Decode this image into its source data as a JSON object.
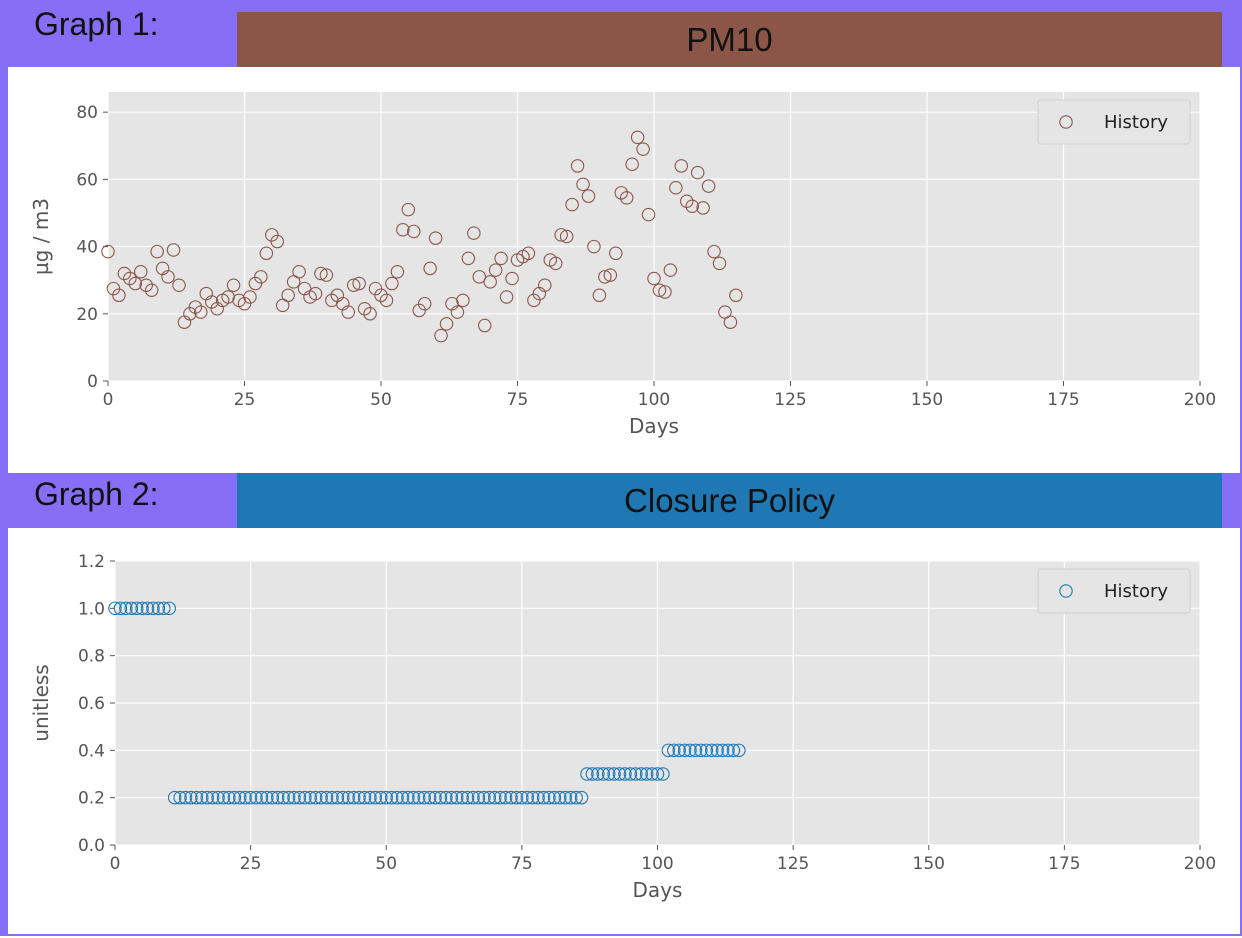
{
  "graphs": [
    {
      "label": "Graph 1:",
      "title": "PM10",
      "title_bg": "#8b5648"
    },
    {
      "label": "Graph 2:",
      "title": "Closure Policy",
      "title_bg": "#1f77b4"
    }
  ],
  "chart_data": [
    {
      "type": "scatter",
      "title": "PM10",
      "xlabel": "Days",
      "ylabel": "µg / m3",
      "xlim": [
        0,
        200
      ],
      "ylim": [
        0,
        86
      ],
      "xticks": [
        0,
        25,
        50,
        75,
        100,
        125,
        150,
        175,
        200
      ],
      "yticks": [
        0,
        20,
        40,
        60,
        80
      ],
      "ytick_labels": [
        "0",
        "20",
        "40",
        "60",
        "80"
      ],
      "grid": true,
      "legend": "top-right",
      "series": [
        {
          "name": "History",
          "color": "#8c564b",
          "x": [
            0,
            1,
            2,
            3,
            4,
            5,
            6,
            7,
            8,
            9,
            10,
            11,
            12,
            13,
            14,
            15,
            16,
            17,
            18,
            19,
            20,
            21,
            22,
            23,
            24,
            25,
            26,
            27,
            28,
            29,
            30,
            31,
            32,
            33,
            34,
            35,
            36,
            37,
            38,
            39,
            40,
            41,
            42,
            43,
            44,
            45,
            46,
            47,
            48,
            49,
            50,
            51,
            52,
            53,
            54,
            55,
            56,
            57,
            58,
            59,
            60,
            61,
            62,
            63,
            64,
            65,
            66,
            67,
            68,
            69,
            70,
            71,
            72,
            73,
            74,
            75,
            76,
            77,
            78,
            79,
            80,
            81,
            82,
            83,
            84,
            85,
            86,
            87,
            88,
            89,
            90,
            91,
            92,
            93,
            94,
            95,
            96,
            97,
            98,
            99,
            100,
            101,
            102,
            103,
            104,
            105,
            106,
            107,
            108,
            109,
            110,
            111,
            112,
            113,
            114,
            115
          ],
          "y": [
            38.5,
            27.5,
            25.5,
            32,
            30.5,
            29,
            32.5,
            28.5,
            27,
            38.5,
            33.5,
            31,
            39,
            28.5,
            17.5,
            20,
            22,
            20.5,
            26,
            23.5,
            21.5,
            24,
            25,
            28.5,
            24,
            23,
            25,
            29,
            31,
            38,
            43.5,
            41.5,
            22.5,
            25.5,
            29.5,
            32.5,
            27.5,
            25,
            26,
            32,
            31.5,
            24,
            25.5,
            23,
            20.5,
            28.5,
            29,
            21.5,
            20,
            27.5,
            25.5,
            24,
            29,
            32.5,
            45,
            51,
            44.5,
            21,
            23,
            33.5,
            42.5,
            13.5,
            17,
            23,
            20.5,
            24,
            36.5,
            44,
            31,
            16.5,
            29.5,
            33,
            36.5,
            25,
            30.5,
            36,
            37,
            38,
            24,
            26,
            28.5,
            36,
            35,
            43.5,
            43,
            52.5,
            64,
            58.5,
            55,
            40,
            25.5,
            31,
            31.5,
            38,
            56,
            54.5,
            64.5,
            72.5,
            69,
            49.5,
            30.5,
            27,
            26.5,
            33,
            57.5,
            64,
            53.5,
            52,
            62,
            51.5,
            58,
            38.5,
            35,
            20.5,
            17.5,
            25.5
          ]
        }
      ]
    },
    {
      "type": "scatter",
      "title": "Closure Policy",
      "xlabel": "Days",
      "ylabel": "unitless",
      "xlim": [
        0,
        200
      ],
      "ylim": [
        0,
        1.2
      ],
      "xticks": [
        0,
        25,
        50,
        75,
        100,
        125,
        150,
        175,
        200
      ],
      "yticks": [
        0,
        0.2,
        0.4,
        0.6,
        0.8,
        1.0,
        1.2
      ],
      "ytick_labels": [
        "0.0",
        "0.2",
        "0.4",
        "0.6",
        "0.8",
        "1.0",
        "1.2"
      ],
      "grid": true,
      "legend": "top-right",
      "series": [
        {
          "name": "History",
          "color": "#1f77b4",
          "x": [
            0,
            1,
            2,
            3,
            4,
            5,
            6,
            7,
            8,
            9,
            10,
            11,
            12,
            13,
            14,
            15,
            16,
            17,
            18,
            19,
            20,
            21,
            22,
            23,
            24,
            25,
            26,
            27,
            28,
            29,
            30,
            31,
            32,
            33,
            34,
            35,
            36,
            37,
            38,
            39,
            40,
            41,
            42,
            43,
            44,
            45,
            46,
            47,
            48,
            49,
            50,
            51,
            52,
            53,
            54,
            55,
            56,
            57,
            58,
            59,
            60,
            61,
            62,
            63,
            64,
            65,
            66,
            67,
            68,
            69,
            70,
            71,
            72,
            73,
            74,
            75,
            76,
            77,
            78,
            79,
            80,
            81,
            82,
            83,
            84,
            85,
            86,
            87,
            88,
            89,
            90,
            91,
            92,
            93,
            94,
            95,
            96,
            97,
            98,
            99,
            100,
            101,
            102,
            103,
            104,
            105,
            106,
            107,
            108,
            109,
            110,
            111,
            112,
            113,
            114,
            115
          ],
          "y": [
            1.0,
            1.0,
            1.0,
            1.0,
            1.0,
            1.0,
            1.0,
            1.0,
            1.0,
            1.0,
            1.0,
            0.2,
            0.2,
            0.2,
            0.2,
            0.2,
            0.2,
            0.2,
            0.2,
            0.2,
            0.2,
            0.2,
            0.2,
            0.2,
            0.2,
            0.2,
            0.2,
            0.2,
            0.2,
            0.2,
            0.2,
            0.2,
            0.2,
            0.2,
            0.2,
            0.2,
            0.2,
            0.2,
            0.2,
            0.2,
            0.2,
            0.2,
            0.2,
            0.2,
            0.2,
            0.2,
            0.2,
            0.2,
            0.2,
            0.2,
            0.2,
            0.2,
            0.2,
            0.2,
            0.2,
            0.2,
            0.2,
            0.2,
            0.2,
            0.2,
            0.2,
            0.2,
            0.2,
            0.2,
            0.2,
            0.2,
            0.2,
            0.2,
            0.2,
            0.2,
            0.2,
            0.2,
            0.2,
            0.2,
            0.2,
            0.2,
            0.2,
            0.2,
            0.2,
            0.2,
            0.2,
            0.2,
            0.2,
            0.2,
            0.2,
            0.2,
            0.2,
            0.3,
            0.3,
            0.3,
            0.3,
            0.3,
            0.3,
            0.3,
            0.3,
            0.3,
            0.3,
            0.3,
            0.3,
            0.3,
            0.3,
            0.3,
            0.4,
            0.4,
            0.4,
            0.4,
            0.4,
            0.4,
            0.4,
            0.4,
            0.4,
            0.4,
            0.4,
            0.4,
            0.4,
            0.4
          ]
        }
      ]
    }
  ]
}
